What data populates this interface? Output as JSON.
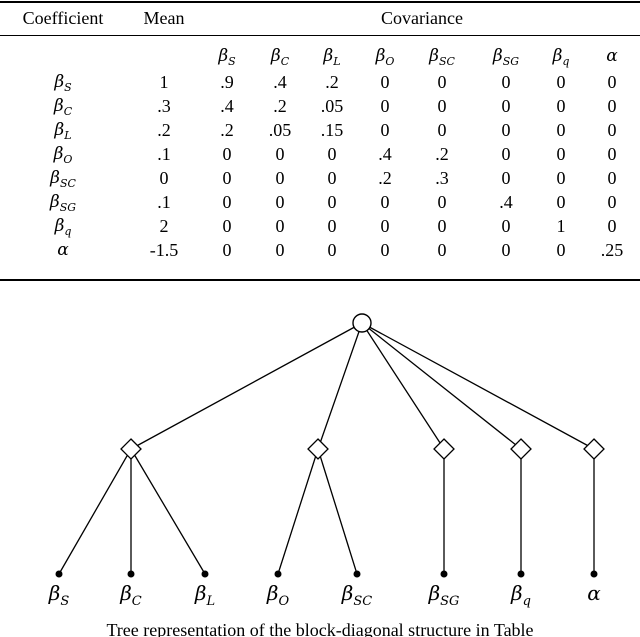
{
  "table": {
    "headers": {
      "coefficient": "Coefficient",
      "mean": "Mean",
      "covariance": "Covariance"
    },
    "columns": [
      {
        "sym": "β",
        "sub": "S"
      },
      {
        "sym": "β",
        "sub": "C"
      },
      {
        "sym": "β",
        "sub": "L"
      },
      {
        "sym": "β",
        "sub": "O"
      },
      {
        "sym": "β",
        "sub": "SC"
      },
      {
        "sym": "β",
        "sub": "SG"
      },
      {
        "sym": "β",
        "sub": "q"
      },
      {
        "sym": "α",
        "sub": ""
      }
    ],
    "rows": [
      {
        "sym": "β",
        "sub": "S",
        "mean": "1",
        "cov": [
          ".9",
          ".4",
          ".2",
          "0",
          "0",
          "0",
          "0",
          "0"
        ]
      },
      {
        "sym": "β",
        "sub": "C",
        "mean": ".3",
        "cov": [
          ".4",
          ".2",
          ".05",
          "0",
          "0",
          "0",
          "0",
          "0"
        ]
      },
      {
        "sym": "β",
        "sub": "L",
        "mean": ".2",
        "cov": [
          ".2",
          ".05",
          ".15",
          "0",
          "0",
          "0",
          "0",
          "0"
        ]
      },
      {
        "sym": "β",
        "sub": "O",
        "mean": ".1",
        "cov": [
          "0",
          "0",
          "0",
          ".4",
          ".2",
          "0",
          "0",
          "0"
        ]
      },
      {
        "sym": "β",
        "sub": "SC",
        "mean": "0",
        "cov": [
          "0",
          "0",
          "0",
          ".2",
          ".3",
          "0",
          "0",
          "0"
        ]
      },
      {
        "sym": "β",
        "sub": "SG",
        "mean": ".1",
        "cov": [
          "0",
          "0",
          "0",
          "0",
          "0",
          ".4",
          "0",
          "0"
        ]
      },
      {
        "sym": "β",
        "sub": "q",
        "mean": "2",
        "cov": [
          "0",
          "0",
          "0",
          "0",
          "0",
          "0",
          "1",
          "0"
        ]
      },
      {
        "sym": "α",
        "sub": "",
        "mean": "-1.5",
        "cov": [
          "0",
          "0",
          "0",
          "0",
          "0",
          "0",
          "0",
          ".25"
        ]
      }
    ]
  },
  "tree": {
    "leaves": [
      {
        "sym": "β",
        "sub": "S"
      },
      {
        "sym": "β",
        "sub": "C"
      },
      {
        "sym": "β",
        "sub": "L"
      },
      {
        "sym": "β",
        "sub": "O"
      },
      {
        "sym": "β",
        "sub": "SC"
      },
      {
        "sym": "β",
        "sub": "SG"
      },
      {
        "sym": "β",
        "sub": "q"
      },
      {
        "sym": "α",
        "sub": ""
      }
    ],
    "groups": [
      [
        0,
        1,
        2
      ],
      [
        3,
        4
      ],
      [
        5
      ],
      [
        6
      ],
      [
        7
      ]
    ]
  },
  "caption": "Tree representation of the block-diagonal structure in Table"
}
